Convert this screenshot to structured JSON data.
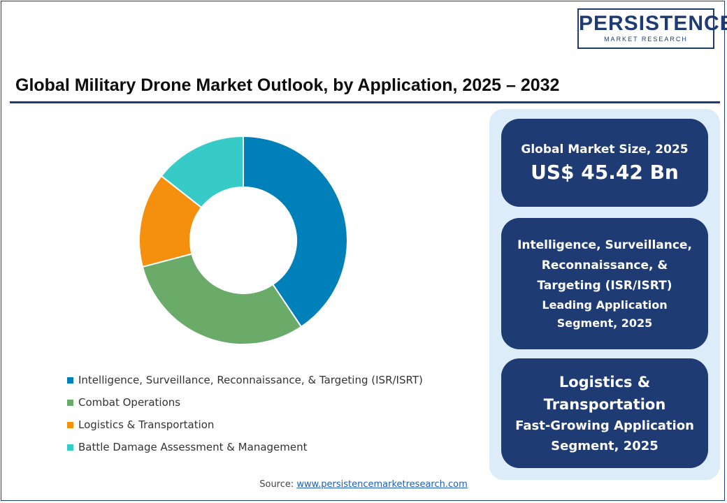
{
  "brand": {
    "name": "PERSISTENCE",
    "tagline": "MARKET RESEARCH"
  },
  "title": "Global Military Drone Market Outlook, by Application, 2025 – 2032",
  "chart_data": {
    "type": "pie",
    "categories": [
      "Intelligence, Surveillance, Reconnaissance, & Targeting (ISR/ISRT)",
      "Combat Operations",
      "Logistics & Transportation",
      "Battle Damage Assessment & Management"
    ],
    "values": [
      40.6,
      30.3,
      14.7,
      14.4
    ],
    "colors": [
      "#0080b9",
      "#6aab6a",
      "#f5900e",
      "#36cbc7"
    ],
    "legend_position": "bottom",
    "hole": "donut"
  },
  "cards": {
    "market_size": {
      "heading": "Global Market Size, 2025",
      "value": "US$ 45.42 Bn"
    },
    "leading": {
      "line1": "Intelligence, Surveillance,",
      "line2": "Reconnaissance, &",
      "line3": "Targeting (ISR/ISRT)",
      "line4": "Leading Application",
      "line5": "Segment, 2025"
    },
    "fastest": {
      "line1": "Logistics &",
      "line2": "Transportation",
      "line3": "Fast-Growing Application",
      "line4": "Segment, 2025"
    }
  },
  "source": {
    "label": "Source:",
    "link": "www.persistencemarketresearch.com"
  }
}
